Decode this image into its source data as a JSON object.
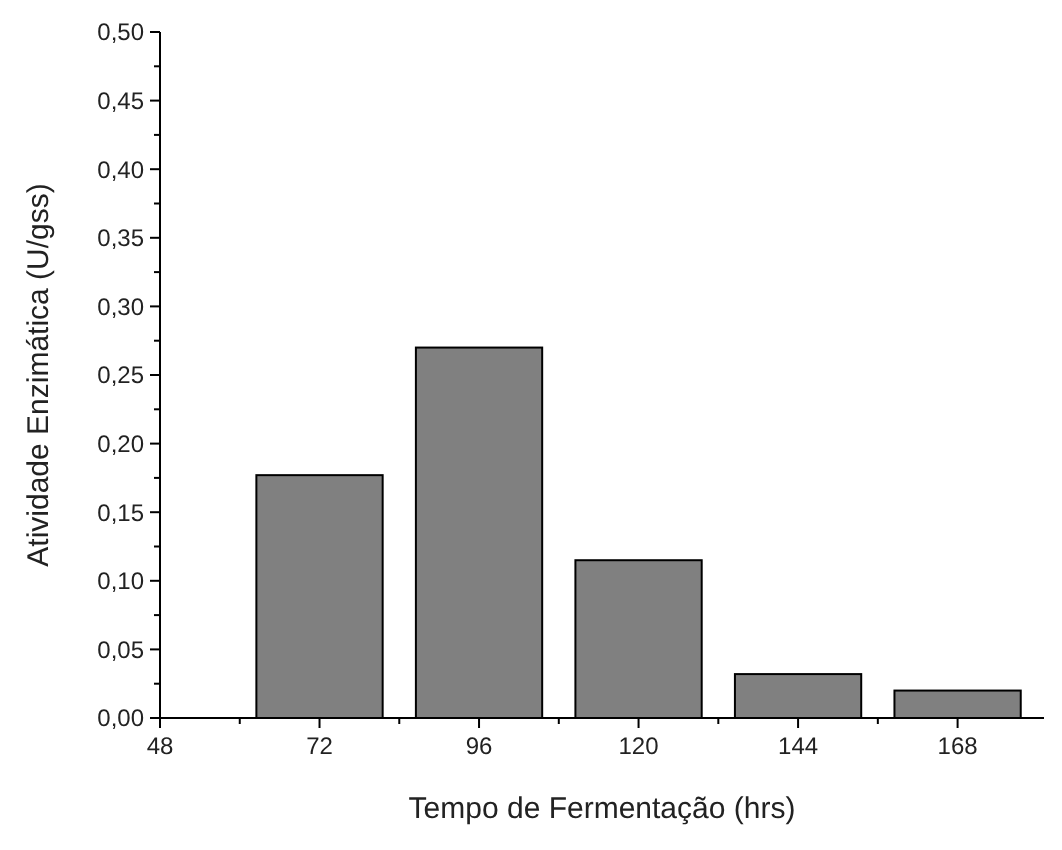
{
  "chart_data": {
    "type": "bar",
    "xlabel": "Tempo de Fermentação (hrs)",
    "ylabel": "Atividade Enzimática (U/gss)",
    "x": [
      72,
      96,
      120,
      144,
      168
    ],
    "values": [
      0.177,
      0.27,
      0.115,
      0.032,
      0.02
    ],
    "color": "#808080",
    "xlim": [
      48,
      181
    ],
    "xticks": [
      48,
      {
        "value": 60,
        "label": null
      },
      72,
      {
        "value": 84,
        "label": null
      },
      96,
      {
        "value": 108,
        "label": null
      },
      120,
      {
        "value": 132,
        "label": null
      },
      144,
      {
        "value": 156,
        "label": null
      },
      168
    ],
    "ylim": [
      0,
      0.5
    ],
    "yticks": [
      {
        "value": 0,
        "label": "0,00"
      },
      {
        "value": 0.025,
        "label": null
      },
      {
        "value": 0.05,
        "label": "0,05"
      },
      {
        "value": 0.075,
        "label": null
      },
      {
        "value": 0.1,
        "label": "0,10"
      },
      {
        "value": 0.125,
        "label": null
      },
      {
        "value": 0.15,
        "label": "0,15"
      },
      {
        "value": 0.175,
        "label": null
      },
      {
        "value": 0.2,
        "label": "0,20"
      },
      {
        "value": 0.225,
        "label": null
      },
      {
        "value": 0.25,
        "label": "0,25"
      },
      {
        "value": 0.275,
        "label": null
      },
      {
        "value": 0.3,
        "label": "0,30"
      },
      {
        "value": 0.325,
        "label": null
      },
      {
        "value": 0.35,
        "label": "0,35"
      },
      {
        "value": 0.375,
        "label": null
      },
      {
        "value": 0.4,
        "label": "0,40"
      },
      {
        "value": 0.425,
        "label": null
      },
      {
        "value": 0.45,
        "label": "0,45"
      },
      {
        "value": 0.475,
        "label": null
      },
      {
        "value": 0.5,
        "label": "0,50"
      }
    ]
  }
}
